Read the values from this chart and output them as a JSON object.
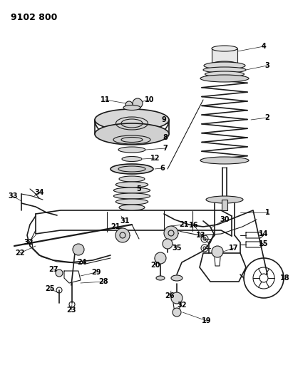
{
  "title": "9102 800",
  "bg_color": "#ffffff",
  "line_color": "#1a1a1a",
  "label_color": "#000000",
  "title_fontsize": 9,
  "label_fontsize": 7,
  "fig_w": 4.11,
  "fig_h": 5.33,
  "dpi": 100,
  "xlim": [
    0,
    411
  ],
  "ylim": [
    0,
    533
  ]
}
